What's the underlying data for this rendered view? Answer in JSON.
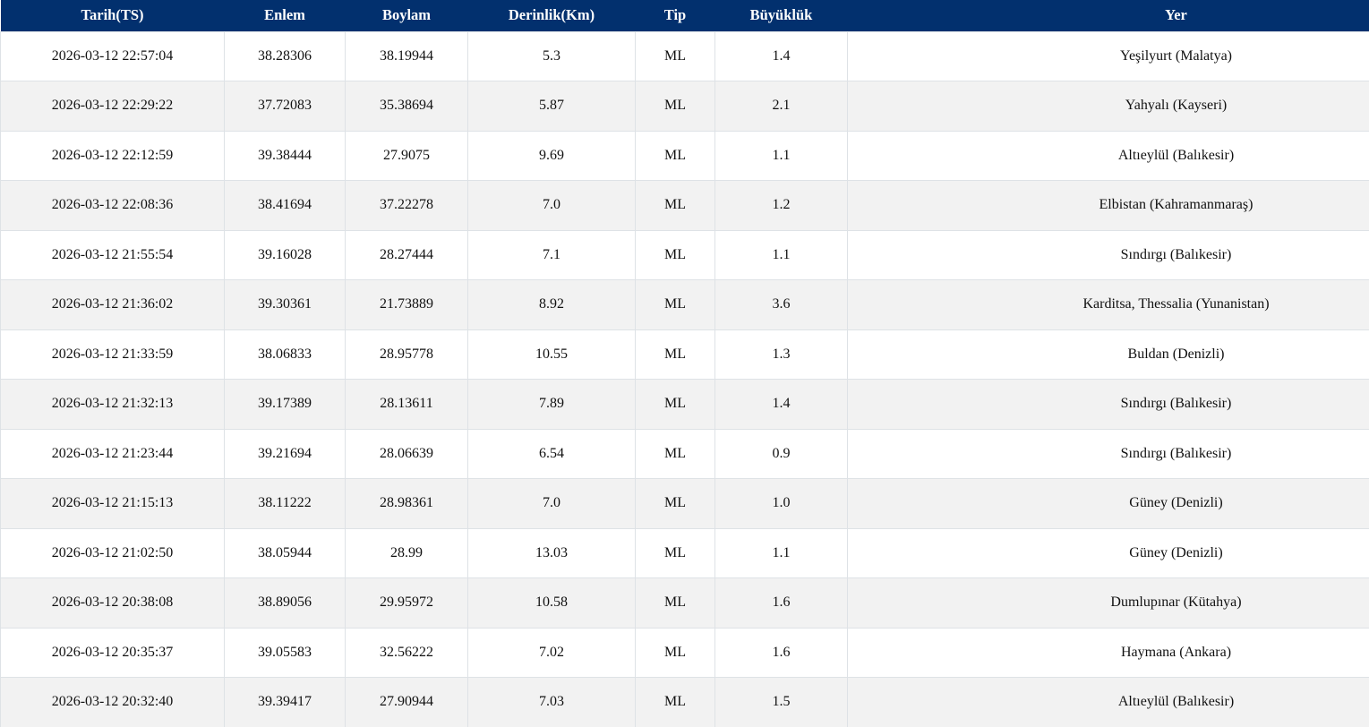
{
  "table": {
    "columns": [
      {
        "key": "tarih",
        "label": "Tarih(TS)"
      },
      {
        "key": "enlem",
        "label": "Enlem"
      },
      {
        "key": "boylam",
        "label": "Boylam"
      },
      {
        "key": "derinlik",
        "label": "Derinlik(Km)"
      },
      {
        "key": "tip",
        "label": "Tip"
      },
      {
        "key": "buyukluk",
        "label": "Büyüklük"
      },
      {
        "key": "yer",
        "label": "Yer"
      }
    ],
    "rows": [
      [
        "2026-03-12 22:57:04",
        "38.28306",
        "38.19944",
        "5.3",
        "ML",
        "1.4",
        "Yeşilyurt (Malatya)"
      ],
      [
        "2026-03-12 22:29:22",
        "37.72083",
        "35.38694",
        "5.87",
        "ML",
        "2.1",
        "Yahyalı (Kayseri)"
      ],
      [
        "2026-03-12 22:12:59",
        "39.38444",
        "27.9075",
        "9.69",
        "ML",
        "1.1",
        "Altıeylül (Balıkesir)"
      ],
      [
        "2026-03-12 22:08:36",
        "38.41694",
        "37.22278",
        "7.0",
        "ML",
        "1.2",
        "Elbistan (Kahramanmaraş)"
      ],
      [
        "2026-03-12 21:55:54",
        "39.16028",
        "28.27444",
        "7.1",
        "ML",
        "1.1",
        "Sındırgı (Balıkesir)"
      ],
      [
        "2026-03-12 21:36:02",
        "39.30361",
        "21.73889",
        "8.92",
        "ML",
        "3.6",
        "Karditsa, Thessalia (Yunanistan)"
      ],
      [
        "2026-03-12 21:33:59",
        "38.06833",
        "28.95778",
        "10.55",
        "ML",
        "1.3",
        "Buldan (Denizli)"
      ],
      [
        "2026-03-12 21:32:13",
        "39.17389",
        "28.13611",
        "7.89",
        "ML",
        "1.4",
        "Sındırgı (Balıkesir)"
      ],
      [
        "2026-03-12 21:23:44",
        "39.21694",
        "28.06639",
        "6.54",
        "ML",
        "0.9",
        "Sındırgı (Balıkesir)"
      ],
      [
        "2026-03-12 21:15:13",
        "38.11222",
        "28.98361",
        "7.0",
        "ML",
        "1.0",
        "Güney (Denizli)"
      ],
      [
        "2026-03-12 21:02:50",
        "38.05944",
        "28.99",
        "13.03",
        "ML",
        "1.1",
        "Güney (Denizli)"
      ],
      [
        "2026-03-12 20:38:08",
        "38.89056",
        "29.95972",
        "10.58",
        "ML",
        "1.6",
        "Dumlupınar (Kütahya)"
      ],
      [
        "2026-03-12 20:35:37",
        "39.05583",
        "32.56222",
        "7.02",
        "ML",
        "1.6",
        "Haymana (Ankara)"
      ],
      [
        "2026-03-12 20:32:40",
        "39.39417",
        "27.90944",
        "7.03",
        "ML",
        "1.5",
        "Altıeylül (Balıkesir)"
      ]
    ]
  },
  "colors": {
    "header_bg": "#02306e",
    "header_text": "#ffffff",
    "stripe_bg": "#f2f2f2",
    "row_bg": "#ffffff",
    "border": "#dee2e6",
    "text": "#111111"
  }
}
